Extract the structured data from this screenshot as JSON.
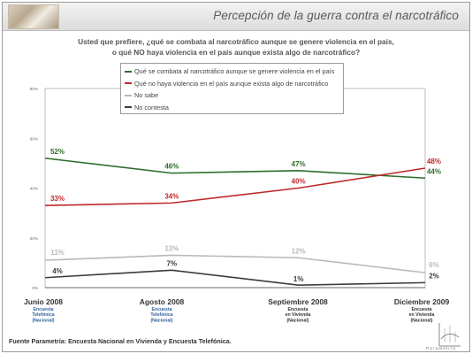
{
  "header": {
    "title": "Percepción de la guerra contra el narcotráfico"
  },
  "question": {
    "line1": "Usted que prefiere, ¿qué se combata al narcotráfico aunque se genere violencia en el país,",
    "line2": "o qué NO haya violencia en el país aunque exista algo de narcotráfico?"
  },
  "footer": {
    "source": "Fuente Parametría: Encuesta Nacional en Vivienda y Encuesta Telefónica.",
    "logo_text": "Parametría"
  },
  "colors": {
    "series_0": "#2e6e2a",
    "series_1": "#c0282a",
    "series_2": "#b9b9b9",
    "series_3": "#3c3c3c",
    "sublabel_blue": "#2f5f9e",
    "sublabel_dark": "#333333"
  },
  "chart_data": {
    "type": "line",
    "x": [
      "Junio 2008",
      "Agosto 2008",
      "Septiembre 2008",
      "Diciembre 2009"
    ],
    "x_sublabels": [
      [
        "Encuesta",
        "Telefónica",
        "(Nacional)"
      ],
      [
        "Encuesta",
        "Telefónica",
        "(Nacional)"
      ],
      [
        "Encuesta",
        "en Vivienda",
        "(Nacional)"
      ],
      [
        "Encuesta",
        "en Vivienda",
        "(Nacional)"
      ]
    ],
    "x_sublabel_kind": [
      "phone",
      "phone",
      "home",
      "home"
    ],
    "ylim": [
      0,
      80
    ],
    "yticks": [
      0,
      20,
      40,
      60,
      80
    ],
    "ytick_labels": [
      "0%",
      "20%",
      "40%",
      "60%",
      "80%"
    ],
    "legend_position": "top-center",
    "grid": false,
    "series": [
      {
        "name": "Qué se combata al narcotráfico aunque se genere violencia en el país",
        "values": [
          52,
          46,
          47,
          44
        ],
        "labels": [
          "52%",
          "46%",
          "47%",
          "44%"
        ]
      },
      {
        "name": "Qué no haya violencia en el país aunque exista algo de narcotráfico",
        "values": [
          33,
          34,
          40,
          48
        ],
        "labels": [
          "33%",
          "34%",
          "40%",
          "48%"
        ]
      },
      {
        "name": "No sabe",
        "values": [
          11,
          13,
          12,
          6
        ],
        "labels": [
          "11%",
          "13%",
          "12%",
          "6%"
        ]
      },
      {
        "name": "No contesta",
        "values": [
          4,
          7,
          1,
          2
        ],
        "labels": [
          "4%",
          "7%",
          "1%",
          "2%"
        ]
      }
    ]
  }
}
